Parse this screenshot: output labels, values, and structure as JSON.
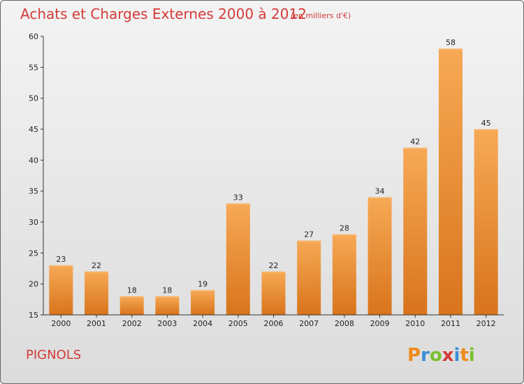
{
  "header": {
    "title": "Achats et Charges Externes 2000 à 2012",
    "subtitle": "(en milliers d'€)"
  },
  "footer": {
    "place": "PIGNOLS",
    "logo_text": "Proxiti"
  },
  "colors": {
    "title": "#d43a3a",
    "bar_light": "#f7a955",
    "bar_dark": "#d8741c",
    "logo_letters": [
      "#f08a1c",
      "#3a8fd6",
      "#7bbf2e",
      "#d43a3a",
      "#3a8fd6",
      "#f08a1c",
      "#7bbf2e"
    ]
  },
  "chart_data": {
    "type": "bar",
    "categories": [
      "2000",
      "2001",
      "2002",
      "2003",
      "2004",
      "2005",
      "2006",
      "2007",
      "2008",
      "2009",
      "2010",
      "2011",
      "2012"
    ],
    "values": [
      23,
      22,
      18,
      18,
      19,
      33,
      22,
      27,
      28,
      34,
      42,
      58,
      45
    ],
    "ylim": [
      15,
      60
    ],
    "yticks": [
      15,
      20,
      25,
      30,
      35,
      40,
      45,
      50,
      55,
      60
    ],
    "grid": false,
    "legend": "none"
  }
}
